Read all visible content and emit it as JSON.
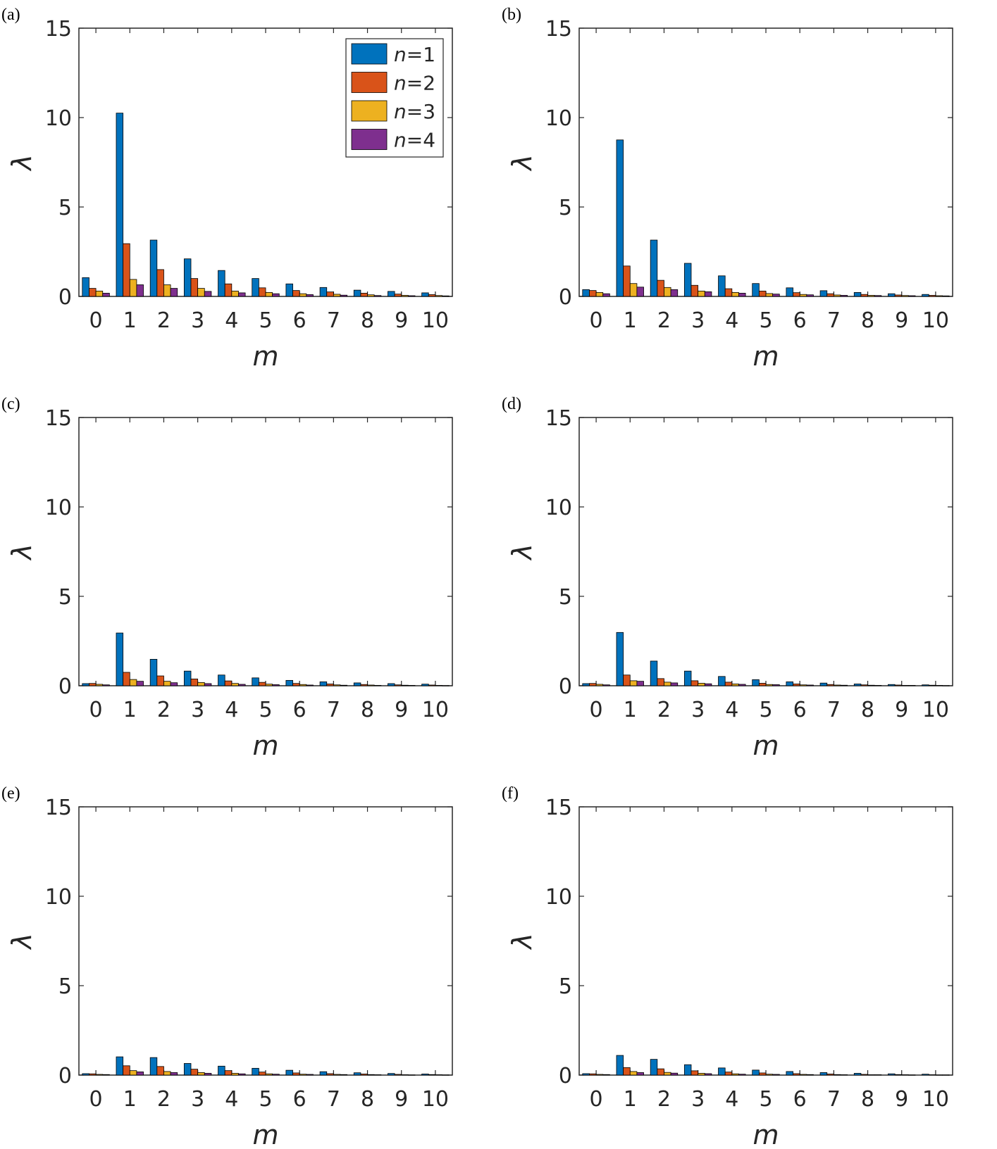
{
  "chart_data": [
    {
      "panel": "(a)",
      "type": "bar",
      "categories": [
        "0",
        "1",
        "2",
        "3",
        "4",
        "5",
        "6",
        "7",
        "8",
        "9",
        "10"
      ],
      "series": [
        {
          "name": "n=1",
          "values": [
            1.05,
            10.25,
            3.15,
            2.1,
            1.45,
            1.0,
            0.7,
            0.5,
            0.35,
            0.28,
            0.2
          ]
        },
        {
          "name": "n=2",
          "values": [
            0.45,
            2.95,
            1.5,
            1.0,
            0.7,
            0.48,
            0.33,
            0.25,
            0.18,
            0.13,
            0.1
          ]
        },
        {
          "name": "n=3",
          "values": [
            0.3,
            0.95,
            0.65,
            0.45,
            0.3,
            0.22,
            0.15,
            0.12,
            0.09,
            0.06,
            0.05
          ]
        },
        {
          "name": "n=4",
          "values": [
            0.18,
            0.65,
            0.45,
            0.28,
            0.2,
            0.15,
            0.1,
            0.07,
            0.05,
            0.04,
            0.03
          ]
        }
      ],
      "xlabel": "m",
      "ylabel": "λ",
      "ylim": [
        0,
        15
      ],
      "yticks": [
        "0",
        "5",
        "10",
        "15"
      ],
      "grid": false,
      "legend": "top-right"
    },
    {
      "panel": "(b)",
      "type": "bar",
      "categories": [
        "0",
        "1",
        "2",
        "3",
        "4",
        "5",
        "6",
        "7",
        "8",
        "9",
        "10"
      ],
      "series": [
        {
          "name": "n=1",
          "values": [
            0.38,
            8.75,
            3.15,
            1.85,
            1.15,
            0.72,
            0.48,
            0.32,
            0.22,
            0.15,
            0.11
          ]
        },
        {
          "name": "n=2",
          "values": [
            0.33,
            1.7,
            0.9,
            0.62,
            0.43,
            0.3,
            0.21,
            0.15,
            0.11,
            0.08,
            0.06
          ]
        },
        {
          "name": "n=3",
          "values": [
            0.22,
            0.72,
            0.5,
            0.3,
            0.22,
            0.16,
            0.11,
            0.08,
            0.06,
            0.05,
            0.04
          ]
        },
        {
          "name": "n=4",
          "values": [
            0.15,
            0.52,
            0.38,
            0.26,
            0.18,
            0.13,
            0.09,
            0.06,
            0.05,
            0.04,
            0.03
          ]
        }
      ],
      "xlabel": "m",
      "ylabel": "λ",
      "ylim": [
        0,
        15
      ],
      "yticks": [
        "0",
        "5",
        "10",
        "15"
      ],
      "grid": false
    },
    {
      "panel": "(c)",
      "type": "bar",
      "categories": [
        "0",
        "1",
        "2",
        "3",
        "4",
        "5",
        "6",
        "7",
        "8",
        "9",
        "10"
      ],
      "series": [
        {
          "name": "n=1",
          "values": [
            0.12,
            2.95,
            1.48,
            0.82,
            0.6,
            0.44,
            0.3,
            0.22,
            0.16,
            0.12,
            0.09
          ]
        },
        {
          "name": "n=2",
          "values": [
            0.13,
            0.75,
            0.55,
            0.38,
            0.27,
            0.19,
            0.13,
            0.1,
            0.07,
            0.05,
            0.04
          ]
        },
        {
          "name": "n=3",
          "values": [
            0.08,
            0.35,
            0.25,
            0.18,
            0.13,
            0.09,
            0.07,
            0.05,
            0.04,
            0.03,
            0.02
          ]
        },
        {
          "name": "n=4",
          "values": [
            0.05,
            0.25,
            0.17,
            0.12,
            0.08,
            0.06,
            0.04,
            0.03,
            0.02,
            0.02,
            0.01
          ]
        }
      ],
      "xlabel": "m",
      "ylabel": "λ",
      "ylim": [
        0,
        15
      ],
      "yticks": [
        "0",
        "5",
        "10",
        "15"
      ],
      "grid": false
    },
    {
      "panel": "(d)",
      "type": "bar",
      "categories": [
        "0",
        "1",
        "2",
        "3",
        "4",
        "5",
        "6",
        "7",
        "8",
        "9",
        "10"
      ],
      "series": [
        {
          "name": "n=1",
          "values": [
            0.12,
            2.98,
            1.38,
            0.82,
            0.52,
            0.34,
            0.22,
            0.15,
            0.1,
            0.07,
            0.05
          ]
        },
        {
          "name": "n=2",
          "values": [
            0.13,
            0.6,
            0.4,
            0.28,
            0.2,
            0.14,
            0.1,
            0.07,
            0.05,
            0.04,
            0.03
          ]
        },
        {
          "name": "n=3",
          "values": [
            0.08,
            0.28,
            0.2,
            0.14,
            0.1,
            0.07,
            0.05,
            0.04,
            0.03,
            0.02,
            0.02
          ]
        },
        {
          "name": "n=4",
          "values": [
            0.05,
            0.25,
            0.16,
            0.11,
            0.08,
            0.06,
            0.04,
            0.03,
            0.02,
            0.02,
            0.01
          ]
        }
      ],
      "xlabel": "m",
      "ylabel": "λ",
      "ylim": [
        0,
        15
      ],
      "yticks": [
        "0",
        "5",
        "10",
        "15"
      ],
      "grid": false
    },
    {
      "panel": "(e)",
      "type": "bar",
      "categories": [
        "0",
        "1",
        "2",
        "3",
        "4",
        "5",
        "6",
        "7",
        "8",
        "9",
        "10"
      ],
      "series": [
        {
          "name": "n=1",
          "values": [
            0.08,
            1.02,
            0.98,
            0.65,
            0.5,
            0.38,
            0.27,
            0.19,
            0.13,
            0.09,
            0.06
          ]
        },
        {
          "name": "n=2",
          "values": [
            0.07,
            0.52,
            0.48,
            0.33,
            0.25,
            0.17,
            0.12,
            0.08,
            0.06,
            0.04,
            0.03
          ]
        },
        {
          "name": "n=3",
          "values": [
            0.04,
            0.25,
            0.2,
            0.14,
            0.1,
            0.07,
            0.05,
            0.04,
            0.03,
            0.02,
            0.02
          ]
        },
        {
          "name": "n=4",
          "values": [
            0.03,
            0.18,
            0.14,
            0.1,
            0.07,
            0.05,
            0.04,
            0.03,
            0.02,
            0.01,
            0.01
          ]
        }
      ],
      "xlabel": "m",
      "ylabel": "λ",
      "ylim": [
        0,
        15
      ],
      "yticks": [
        "0",
        "5",
        "10",
        "15"
      ],
      "grid": false
    },
    {
      "panel": "(f)",
      "type": "bar",
      "categories": [
        "0",
        "1",
        "2",
        "3",
        "4",
        "5",
        "6",
        "7",
        "8",
        "9",
        "10"
      ],
      "series": [
        {
          "name": "n=1",
          "values": [
            0.08,
            1.1,
            0.88,
            0.58,
            0.4,
            0.28,
            0.2,
            0.14,
            0.1,
            0.07,
            0.05
          ]
        },
        {
          "name": "n=2",
          "values": [
            0.07,
            0.42,
            0.35,
            0.24,
            0.17,
            0.12,
            0.08,
            0.06,
            0.04,
            0.03,
            0.02
          ]
        },
        {
          "name": "n=3",
          "values": [
            0.04,
            0.2,
            0.15,
            0.1,
            0.07,
            0.05,
            0.04,
            0.03,
            0.02,
            0.02,
            0.01
          ]
        },
        {
          "name": "n=4",
          "values": [
            0.03,
            0.14,
            0.11,
            0.08,
            0.05,
            0.04,
            0.03,
            0.02,
            0.02,
            0.01,
            0.01
          ]
        }
      ],
      "xlabel": "m",
      "ylabel": "λ",
      "ylim": [
        0,
        15
      ],
      "yticks": [
        "0",
        "5",
        "10",
        "15"
      ],
      "grid": false
    }
  ],
  "legend": {
    "entries": [
      {
        "italic": "n",
        "rest": "=1"
      },
      {
        "italic": "n",
        "rest": "=2"
      },
      {
        "italic": "n",
        "rest": "=3"
      },
      {
        "italic": "n",
        "rest": "=4"
      }
    ]
  },
  "colors": {
    "series": [
      "#0072BD",
      "#D95319",
      "#EDB120",
      "#7E2F8E"
    ],
    "axis": "#262626",
    "edge": "#000000"
  }
}
